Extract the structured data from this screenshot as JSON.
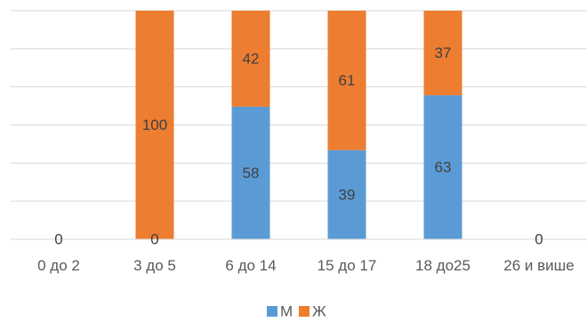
{
  "chart_data": {
    "type": "bar",
    "stacked": true,
    "percent_stacked": true,
    "categories": [
      "0 до 2",
      "3 до 5",
      "6 до 14",
      "15 до 17",
      "18 до25",
      "26 и више"
    ],
    "series": [
      {
        "name": "М",
        "values": [
          0,
          0,
          58,
          39,
          63,
          0
        ],
        "color": "#5B9BD5"
      },
      {
        "name": "Ж",
        "values": [
          0,
          100,
          42,
          61,
          37,
          0
        ],
        "color": "#ED7D31"
      }
    ],
    "data_labels": [
      {
        "category": "0 до 2",
        "text": "0"
      },
      {
        "category": "3 до 5",
        "series": "М",
        "text": "0"
      },
      {
        "category": "3 до 5",
        "series": "Ж",
        "text": "100"
      },
      {
        "category": "6 до 14",
        "series": "М",
        "text": "58"
      },
      {
        "category": "6 до 14",
        "series": "Ж",
        "text": "42"
      },
      {
        "category": "15 до 17",
        "series": "М",
        "text": "39"
      },
      {
        "category": "15 до 17",
        "series": "Ж",
        "text": "61"
      },
      {
        "category": "18 до25",
        "series": "М",
        "text": "63"
      },
      {
        "category": "18 до25",
        "series": "Ж",
        "text": "37"
      },
      {
        "category": "26 и више",
        "text": "0"
      }
    ],
    "ylim": [
      0,
      100
    ],
    "grid": true,
    "legend": "bottom",
    "title": "",
    "xlabel": "",
    "ylabel": ""
  }
}
